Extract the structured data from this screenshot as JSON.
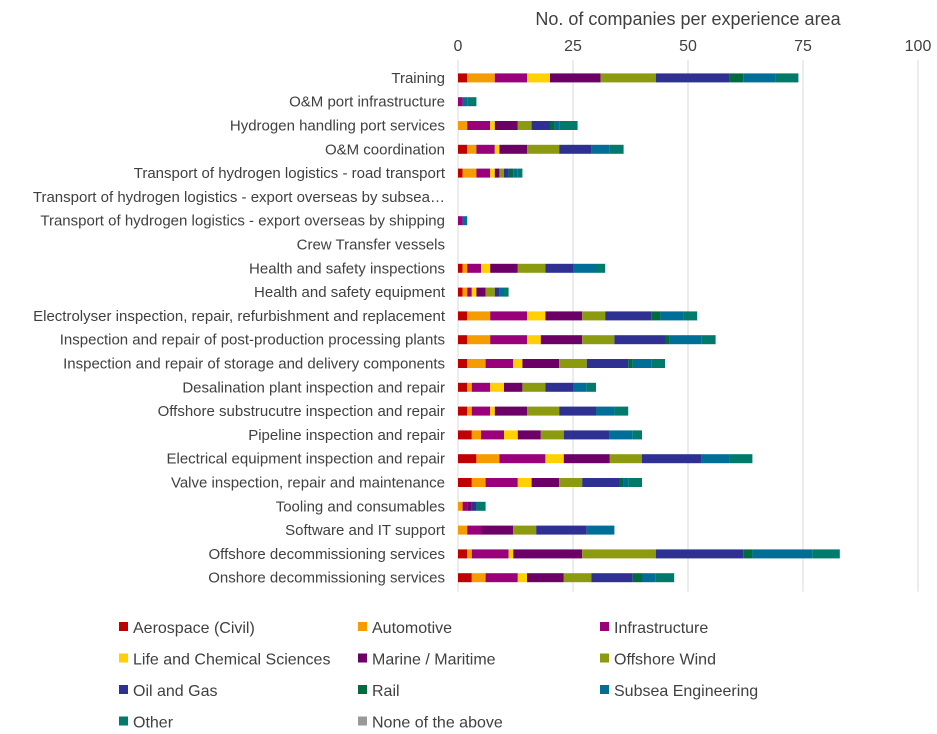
{
  "chart_data": {
    "type": "bar",
    "orientation": "horizontal",
    "stacked": true,
    "title": "No. of companies per experience area",
    "xlim": [
      0,
      100
    ],
    "xticks": [
      "0",
      "25",
      "50",
      "75",
      "100"
    ],
    "grid": true,
    "legend_position": "bottom",
    "categories": [
      "Training",
      "O&M port infrastructure",
      "Hydrogen handling port services",
      "O&M coordination",
      "Transport of hydrogen logistics - road transport",
      "Transport of hydrogen logistics - export overseas by subsea…",
      "Transport of hydrogen logistics - export overseas by shipping",
      "Crew Transfer vessels",
      "Health and safety inspections",
      "Health and safety equipment",
      "Electrolyser inspection, repair, refurbishment and replacement",
      "Inspection and repair of post-production processing plants",
      "Inspection and repair of storage and delivery components",
      "Desalination plant inspection and repair",
      "Offshore substrucutre inspection and repair",
      "Pipeline inspection and repair",
      "Electrical equipment inspection and repair",
      "Valve inspection, repair and maintenance",
      "Tooling and consumables",
      "Software and IT support",
      "Offshore decommissioning services",
      "Onshore decommissioning services"
    ],
    "series": [
      {
        "name": "Aerospace (Civil)",
        "color": "#C00000",
        "values": [
          2,
          0,
          0,
          2,
          1,
          0,
          0,
          0,
          1,
          1,
          2,
          2,
          2,
          2,
          2,
          3,
          4,
          3,
          0,
          0,
          2,
          3
        ]
      },
      {
        "name": "Automotive",
        "color": "#F59C00",
        "values": [
          6,
          0,
          2,
          2,
          3,
          0,
          0,
          0,
          1,
          1,
          5,
          5,
          4,
          1,
          1,
          2,
          5,
          3,
          1,
          2,
          1,
          3
        ]
      },
      {
        "name": "Infrastructure",
        "color": "#99007A",
        "values": [
          7,
          1,
          5,
          4,
          3,
          0,
          1,
          0,
          3,
          1,
          8,
          8,
          6,
          4,
          4,
          5,
          10,
          7,
          1,
          3,
          8,
          7
        ]
      },
      {
        "name": "Life and Chemical Sciences",
        "color": "#FFD100",
        "values": [
          5,
          0,
          1,
          1,
          1,
          0,
          0,
          0,
          2,
          1,
          4,
          3,
          2,
          3,
          1,
          3,
          4,
          3,
          0,
          0,
          1,
          2
        ]
      },
      {
        "name": "Marine / Maritime",
        "color": "#6C0066",
        "values": [
          11,
          0,
          5,
          6,
          1,
          0,
          0,
          0,
          6,
          2,
          8,
          9,
          8,
          4,
          7,
          5,
          10,
          6,
          1,
          7,
          15,
          8
        ]
      },
      {
        "name": "Offshore Wind",
        "color": "#8B9A0E",
        "values": [
          12,
          0,
          3,
          7,
          1,
          0,
          0,
          0,
          6,
          2,
          5,
          7,
          6,
          5,
          7,
          5,
          7,
          5,
          0,
          5,
          16,
          6
        ]
      },
      {
        "name": "Oil and Gas",
        "color": "#2E3192",
        "values": [
          16,
          0,
          4,
          7,
          1,
          0,
          0,
          0,
          6,
          1,
          10,
          11,
          9,
          6,
          8,
          10,
          13,
          8,
          1,
          11,
          19,
          9
        ]
      },
      {
        "name": "Rail",
        "color": "#006B3F",
        "values": [
          3,
          0,
          1,
          0,
          1,
          0,
          0,
          0,
          0,
          0,
          2,
          1,
          1,
          0,
          0,
          0,
          0,
          1,
          0,
          0,
          2,
          2
        ]
      },
      {
        "name": "Subsea Engineering",
        "color": "#006E96",
        "values": [
          7,
          1,
          1,
          4,
          1,
          0,
          1,
          0,
          5,
          1,
          5,
          7,
          4,
          3,
          4,
          5,
          6,
          1,
          0,
          6,
          13,
          3
        ]
      },
      {
        "name": "Other",
        "color": "#007A6A",
        "values": [
          5,
          2,
          4,
          3,
          1,
          0,
          0,
          0,
          2,
          1,
          3,
          3,
          3,
          2,
          3,
          2,
          5,
          3,
          2,
          0,
          6,
          4
        ]
      },
      {
        "name": "None of the above",
        "color": "#999999",
        "values": [
          0,
          0,
          0,
          0,
          0,
          0,
          0,
          0,
          0,
          0,
          0,
          0,
          0,
          0,
          0,
          0,
          0,
          0,
          0,
          0,
          0,
          0
        ]
      }
    ]
  }
}
